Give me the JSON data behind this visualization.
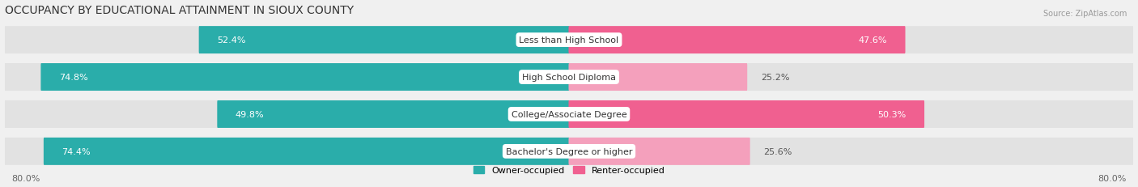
{
  "title": "OCCUPANCY BY EDUCATIONAL ATTAINMENT IN SIOUX COUNTY",
  "source": "Source: ZipAtlas.com",
  "categories": [
    "Less than High School",
    "High School Diploma",
    "College/Associate Degree",
    "Bachelor's Degree or higher"
  ],
  "owner_values": [
    52.4,
    74.8,
    49.8,
    74.4
  ],
  "renter_values": [
    47.6,
    25.2,
    50.3,
    25.6
  ],
  "owner_color_large": "#2aadaa",
  "owner_color_small": "#7fcfcc",
  "renter_color_large": "#f06090",
  "renter_color_small": "#f4a0bc",
  "owner_label": "Owner-occupied",
  "renter_label": "Renter-occupied",
  "xlim_left": -80.0,
  "xlim_right": 80.0,
  "axis_label_left": "80.0%",
  "axis_label_right": "80.0%",
  "bar_height": 0.62,
  "background_color": "#f0f0f0",
  "bar_bg_color": "#e2e2e2",
  "row_bg_color": "#f8f8f8",
  "title_fontsize": 10,
  "label_fontsize": 8,
  "value_fontsize": 8,
  "legend_fontsize": 8,
  "source_fontsize": 7,
  "threshold_large": 40.0
}
